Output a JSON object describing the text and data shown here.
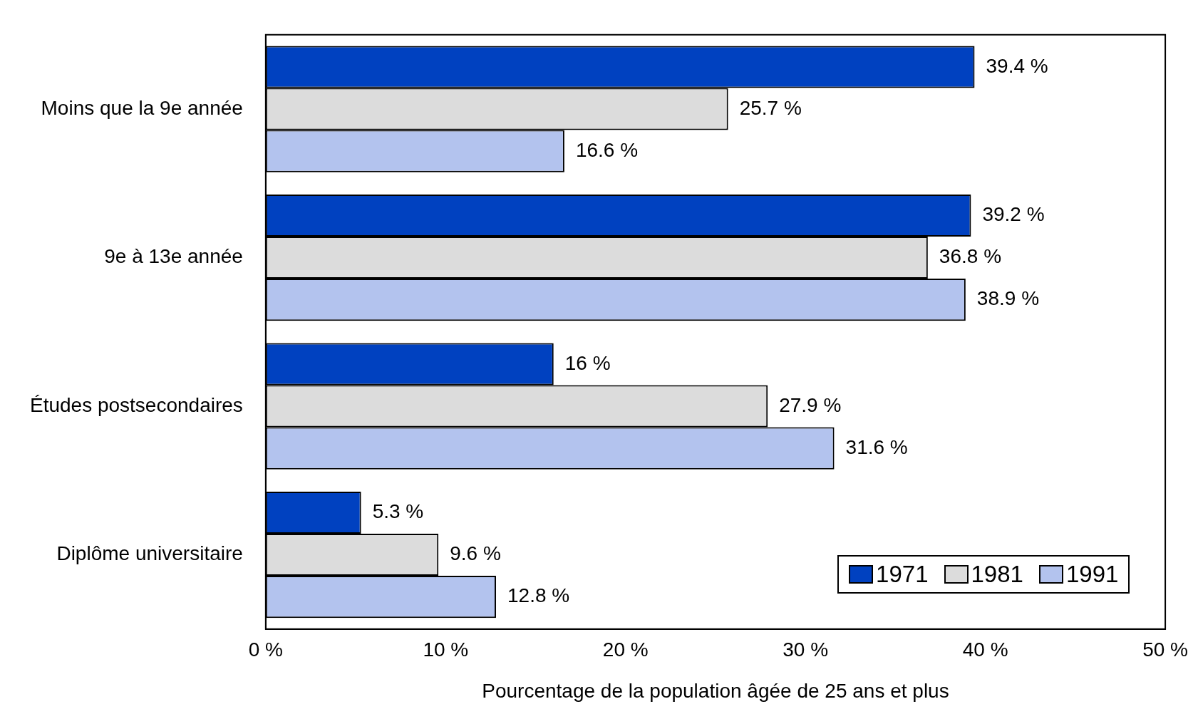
{
  "chart_data": {
    "type": "bar",
    "orientation": "horizontal",
    "xlabel": "Pourcentage de la population âgée de 25 ans et plus",
    "categories": [
      "Moins que la 9e année",
      "9e à 13e année",
      "Études postsecondaires",
      "Diplôme universitaire"
    ],
    "series": [
      {
        "name": "1971",
        "color": "#0041c0",
        "values": [
          39.4,
          39.2,
          16,
          5.3
        ],
        "value_labels": [
          "39.4 %",
          "39.2 %",
          "16 %",
          "5.3 %"
        ]
      },
      {
        "name": "1981",
        "color": "#dcdcdc",
        "values": [
          25.7,
          36.8,
          27.9,
          9.6
        ],
        "value_labels": [
          "25.7 %",
          "36.8 %",
          "27.9 %",
          "9.6 %"
        ]
      },
      {
        "name": "1991",
        "color": "#b3c3ee",
        "values": [
          16.6,
          38.9,
          31.6,
          12.8
        ],
        "value_labels": [
          "16.6 %",
          "38.9 %",
          "31.6 %",
          "12.8 %"
        ]
      }
    ],
    "xlim": [
      0,
      50
    ],
    "xticks": [
      {
        "value": 0,
        "label": "0 %"
      },
      {
        "value": 10,
        "label": "10 %"
      },
      {
        "value": 20,
        "label": "20 %"
      },
      {
        "value": 30,
        "label": "30 %"
      },
      {
        "value": 40,
        "label": "40 %"
      },
      {
        "value": 50,
        "label": "50 %"
      }
    ],
    "grid": false,
    "legend": "bottom right"
  }
}
